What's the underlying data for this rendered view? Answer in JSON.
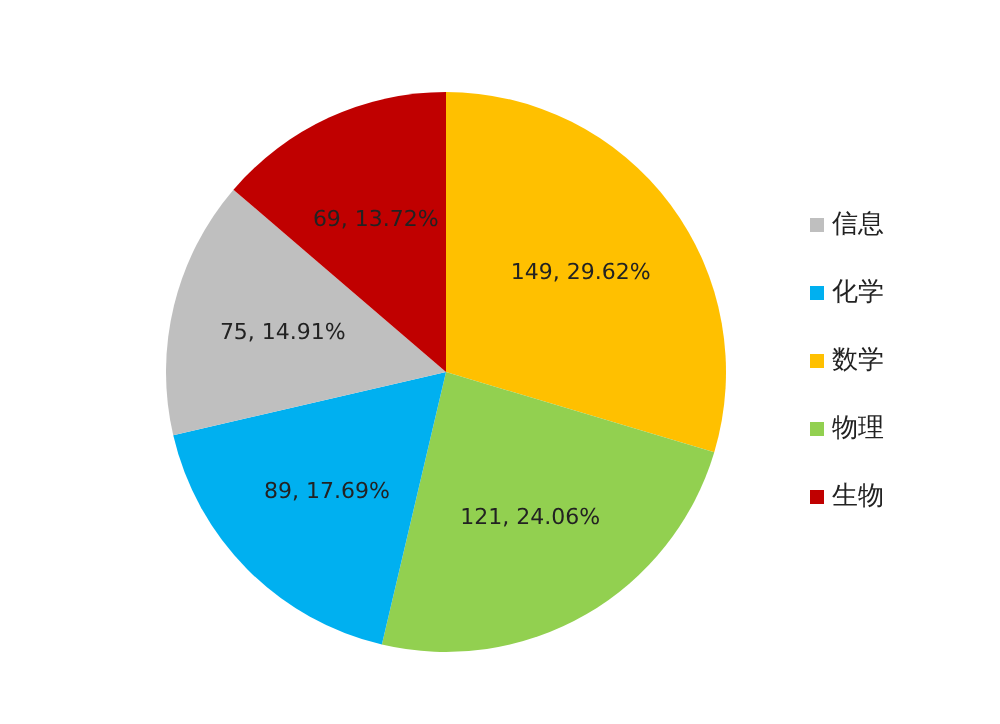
{
  "chart_data": {
    "type": "pie",
    "categories": [
      "数学",
      "物理",
      "化学",
      "信息",
      "生物"
    ],
    "values": [
      149,
      121,
      89,
      75,
      69
    ],
    "colors": [
      "#ffc000",
      "#92d050",
      "#00b0f0",
      "#bfbfbf",
      "#c00000"
    ],
    "value_labels": [
      "149, 29.62%",
      "121, 24.06%",
      "89, 17.69%",
      "75, 14.91%",
      "69, 13.72%"
    ],
    "legend": "right"
  }
}
